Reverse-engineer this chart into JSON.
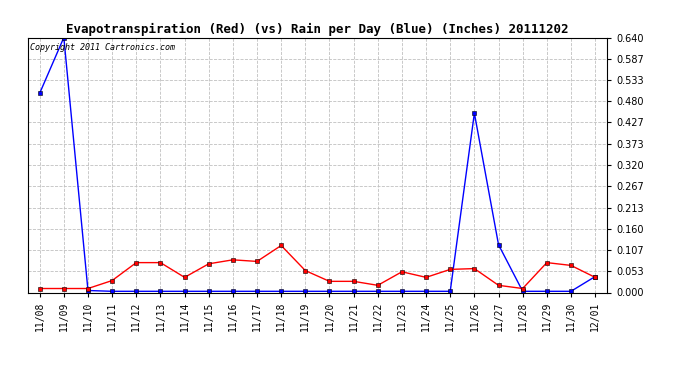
{
  "title": "Evapotranspiration (Red) (vs) Rain per Day (Blue) (Inches) 20111202",
  "copyright_text": "Copyright 2011 Cartronics.com",
  "x_labels": [
    "11/08",
    "11/09",
    "11/10",
    "11/11",
    "11/12",
    "11/13",
    "11/14",
    "11/15",
    "11/16",
    "11/17",
    "11/18",
    "11/19",
    "11/20",
    "11/21",
    "11/22",
    "11/23",
    "11/24",
    "11/25",
    "11/26",
    "11/27",
    "11/28",
    "11/29",
    "11/30",
    "12/01"
  ],
  "blue_rain": [
    0.5,
    0.64,
    0.005,
    0.003,
    0.003,
    0.003,
    0.003,
    0.003,
    0.003,
    0.003,
    0.003,
    0.003,
    0.003,
    0.003,
    0.003,
    0.003,
    0.003,
    0.003,
    0.45,
    0.12,
    0.003,
    0.003,
    0.003,
    0.04
  ],
  "red_et": [
    0.01,
    0.01,
    0.01,
    0.03,
    0.075,
    0.075,
    0.038,
    0.072,
    0.082,
    0.078,
    0.118,
    0.055,
    0.028,
    0.028,
    0.018,
    0.052,
    0.038,
    0.058,
    0.06,
    0.018,
    0.01,
    0.075,
    0.068,
    0.038
  ],
  "ylim_min": 0.0,
  "ylim_max": 0.64,
  "yticks": [
    0.0,
    0.053,
    0.107,
    0.16,
    0.213,
    0.267,
    0.32,
    0.373,
    0.427,
    0.48,
    0.533,
    0.587,
    0.64
  ],
  "bg_color": "#ffffff",
  "grid_color": "#c0c0c0",
  "blue_color": "#0000ff",
  "red_color": "#ff0000",
  "title_fontsize": 9,
  "copyright_fontsize": 6,
  "tick_fontsize": 7,
  "figwidth": 6.9,
  "figheight": 3.75,
  "dpi": 100
}
